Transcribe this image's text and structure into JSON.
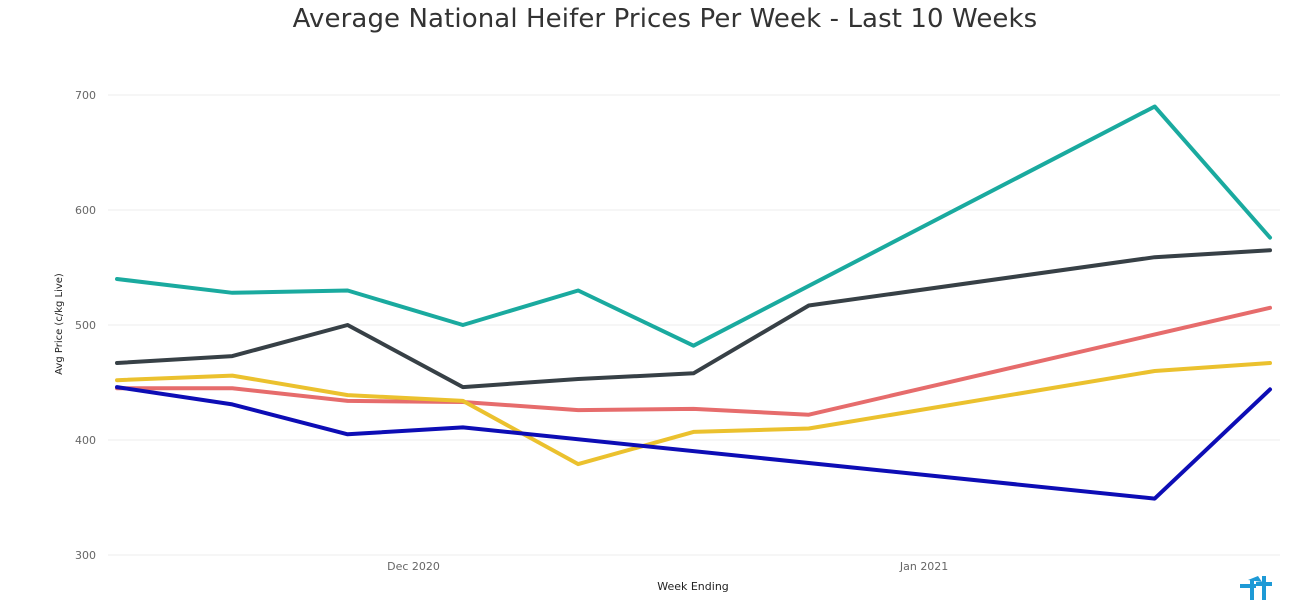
{
  "chart_data": {
    "type": "line",
    "title": "Average National Heifer Prices Per Week - Last 10 Weeks",
    "xlabel": "Week Ending",
    "ylabel": "Avg Price (c/kg Live)",
    "x": [
      "2020-11-13",
      "2020-11-20",
      "2020-11-27",
      "2020-12-04",
      "2020-12-11",
      "2020-12-18",
      "2020-12-25",
      "2021-01-15",
      "2021-01-22"
    ],
    "xticks": [
      {
        "date": "2020-12-01",
        "label": "Dec 2020"
      },
      {
        "date": "2021-01-01",
        "label": "Jan 2021"
      }
    ],
    "ylim": [
      300,
      700
    ],
    "yticks": [
      300,
      400,
      500,
      600,
      700
    ],
    "grid": true,
    "series": [
      {
        "color": "#1aaa9f",
        "values": [
          540,
          528,
          530,
          500,
          530,
          482,
          null,
          690,
          576
        ]
      },
      {
        "color": "#374046",
        "values": [
          467,
          473,
          500,
          446,
          453,
          458,
          517,
          559,
          565
        ]
      },
      {
        "color": "#e66c6c",
        "values": [
          445,
          445,
          434,
          433,
          426,
          427,
          422,
          null,
          515
        ]
      },
      {
        "color": "#ebc12e",
        "values": [
          452,
          456,
          439,
          434,
          379,
          407,
          410,
          460,
          467
        ]
      },
      {
        "color": "#0d0db5",
        "values": [
          446,
          431,
          405,
          411,
          null,
          null,
          null,
          349,
          444
        ]
      }
    ]
  },
  "logo_icon": "plus-cross-logo-icon"
}
